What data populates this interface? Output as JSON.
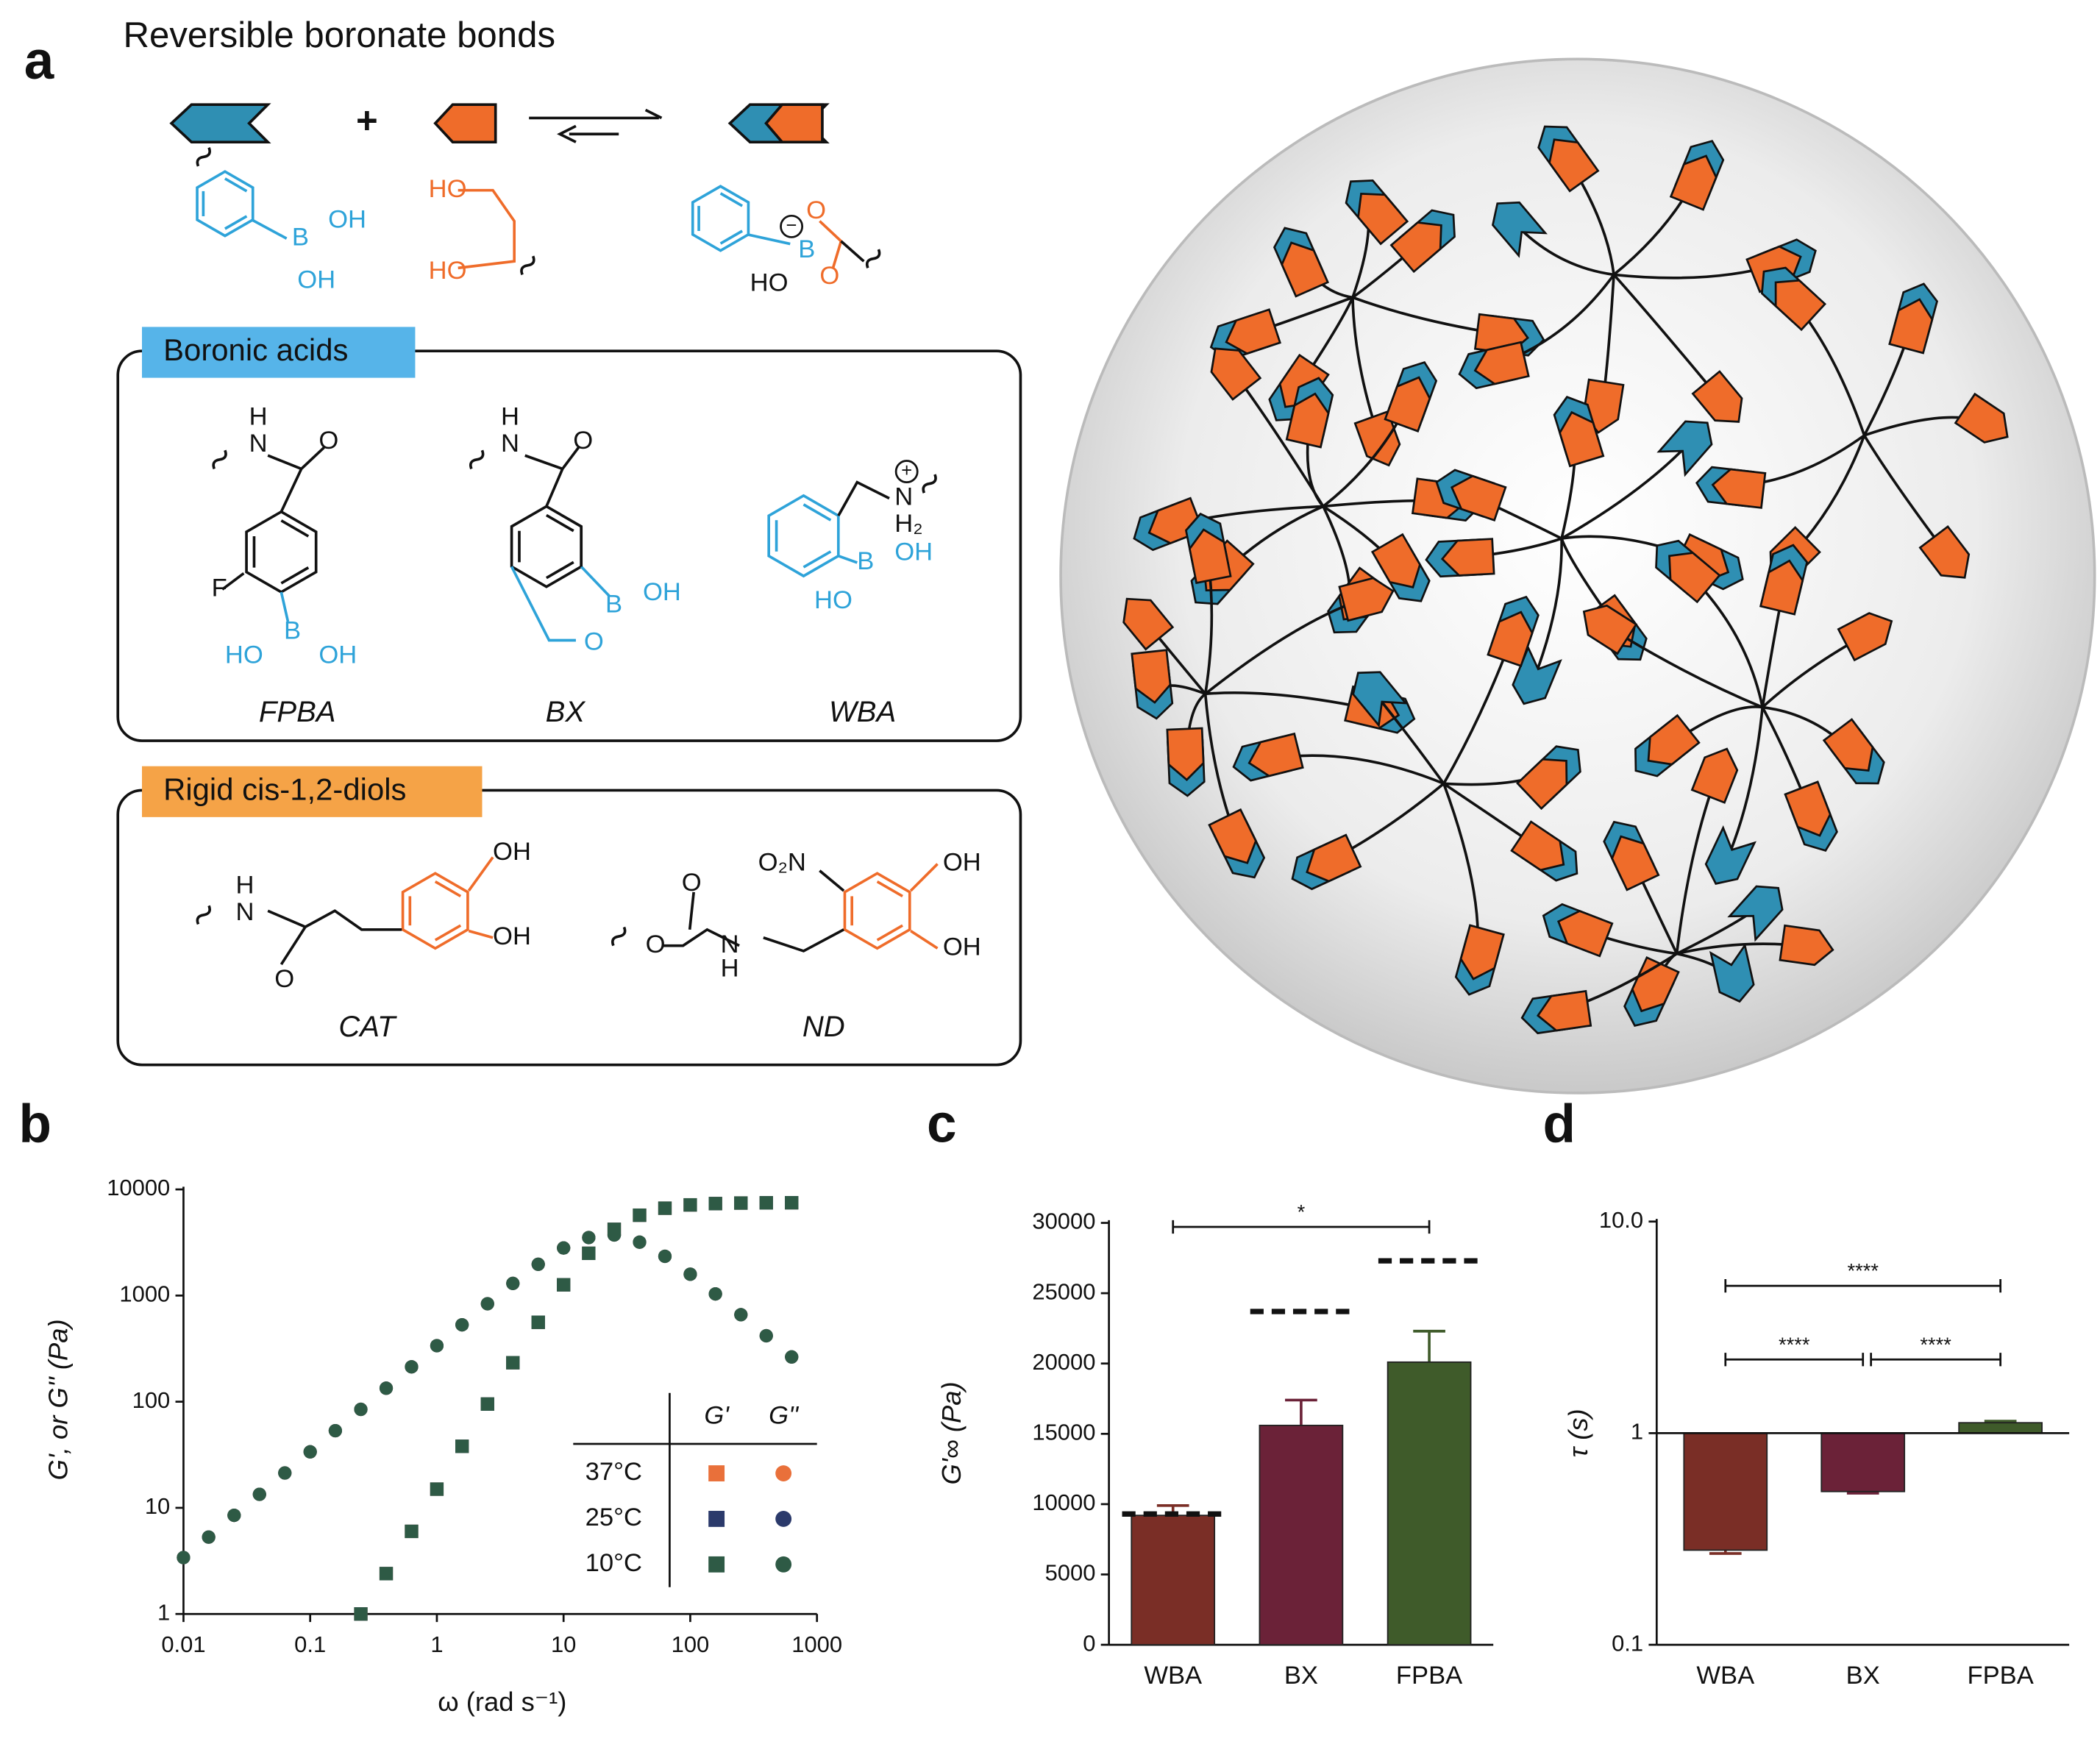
{
  "panel_labels": [
    "a",
    "b",
    "c",
    "d"
  ],
  "scheme": {
    "title": "Reversible boronate bonds",
    "plus": "+",
    "boronic_acid_atoms": [
      "B",
      "OH",
      "OH"
    ],
    "diol_atoms": [
      "HO",
      "HO"
    ],
    "ester_atoms": [
      "B",
      "O",
      "O",
      "HO",
      "−"
    ]
  },
  "boronic_acids": {
    "title": "Boronic acids",
    "compounds": [
      {
        "name": "FPBA",
        "atoms": [
          "H",
          "N",
          "O",
          "F",
          "B",
          "HO",
          "OH"
        ]
      },
      {
        "name": "BX",
        "atoms": [
          "H",
          "N",
          "O",
          "B",
          "OH",
          "O"
        ]
      },
      {
        "name": "WBA",
        "atoms": [
          "N",
          "H₂",
          "+",
          "B",
          "OH",
          "HO"
        ]
      }
    ]
  },
  "diols": {
    "title": "Rigid cis-1,2-diols",
    "compounds": [
      {
        "name": "CAT",
        "atoms": [
          "H",
          "N",
          "O",
          "OH",
          "OH"
        ]
      },
      {
        "name": "ND",
        "atoms": [
          "O₂N",
          "O",
          "O",
          "H",
          "N",
          "OH",
          "OH"
        ]
      }
    ]
  },
  "chart_data": [
    {
      "type": "scatter",
      "x_label": "ω (rad s⁻¹)",
      "y_label": "G', or G'' (Pa)",
      "xscale": "log",
      "yscale": "log",
      "xlim": [
        0.01,
        1000
      ],
      "ylim": [
        1,
        10000
      ],
      "xticks": [
        0.01,
        0.1,
        1,
        10,
        100,
        1000
      ],
      "yticks": [
        1,
        10,
        100,
        1000,
        10000
      ],
      "legend_columns": [
        "G'",
        "G''"
      ],
      "x": [
        0.01,
        0.0158,
        0.0251,
        0.0398,
        0.0631,
        0.1,
        0.158,
        0.251,
        0.398,
        0.631,
        1,
        1.58,
        2.51,
        3.98,
        6.31,
        10,
        15.8,
        25.1,
        39.8,
        63.1,
        100,
        158,
        251,
        398,
        631
      ],
      "series": [
        {
          "name": "37°C",
          "color": "#e9703a",
          "storage_values": [
            null,
            null,
            null,
            null,
            null,
            null,
            null,
            1.0,
            2.4,
            6.0,
            15,
            38,
            95,
            233,
            560,
            1263,
            2500,
            4205,
            5715,
            6655,
            7147,
            7353,
            7441,
            7477,
            7491
          ],
          "loss_values": [
            3.4,
            5.3,
            8.5,
            13.4,
            21.3,
            33.7,
            53.3,
            84.7,
            134,
            213,
            337,
            530,
            837,
            1301,
            1971,
            2807,
            3518,
            3722,
            3185,
            2342,
            1588,
            1036,
            660,
            418,
            264
          ]
        },
        {
          "name": "25°C",
          "color": "#2b3a6b",
          "storage_values": [
            null,
            null,
            null,
            null,
            null,
            null,
            null,
            1.0,
            2.4,
            6.0,
            15,
            38,
            95,
            233,
            560,
            1263,
            2500,
            4205,
            5715,
            6655,
            7147,
            7353,
            7441,
            7477,
            7491
          ],
          "loss_values": [
            3.4,
            5.3,
            8.5,
            13.4,
            21.3,
            33.7,
            53.3,
            84.7,
            134,
            213,
            337,
            530,
            837,
            1301,
            1971,
            2807,
            3518,
            3722,
            3185,
            2342,
            1588,
            1036,
            660,
            418,
            264
          ]
        },
        {
          "name": "10°C",
          "color": "#2e5a45",
          "storage_values": [
            null,
            null,
            null,
            null,
            null,
            null,
            null,
            1.0,
            2.4,
            6.0,
            15,
            38,
            95,
            233,
            560,
            1263,
            2500,
            4205,
            5715,
            6655,
            7147,
            7353,
            7441,
            7477,
            7491
          ],
          "loss_values": [
            3.4,
            5.3,
            8.5,
            13.4,
            21.3,
            33.7,
            53.3,
            84.7,
            134,
            213,
            337,
            530,
            837,
            1301,
            1971,
            2807,
            3518,
            3722,
            3185,
            2342,
            1588,
            1036,
            660,
            418,
            264
          ]
        }
      ]
    },
    {
      "type": "bar",
      "y_label": "G'∞ (Pa)",
      "categories": [
        "WBA",
        "BX",
        "FPBA"
      ],
      "values": [
        9200,
        15600,
        20100
      ],
      "errors": [
        700,
        1800,
        2200
      ],
      "reference_values": [
        9300,
        23700,
        27300
      ],
      "colors": [
        "#7a2e26",
        "#6b2238",
        "#3f5b2a"
      ],
      "ylim": [
        0,
        30000
      ],
      "yticks": [
        0,
        5000,
        10000,
        15000,
        20000,
        25000,
        30000
      ],
      "significance_labels": [
        "*"
      ]
    },
    {
      "type": "bar",
      "y_label": "τ (s)",
      "yscale": "log",
      "categories": [
        "WBA",
        "BX",
        "FPBA"
      ],
      "values": [
        0.28,
        0.53,
        1.12
      ],
      "errors": [
        0.01,
        0.01,
        0.02
      ],
      "colors": [
        "#7a2e26",
        "#6b2238",
        "#3f5b2a"
      ],
      "ylim": [
        0.1,
        10
      ],
      "yticks": [
        0.1,
        1,
        {
          "value": 10,
          "label": "10.0"
        }
      ],
      "significance_labels": [
        "****",
        "****",
        "****"
      ]
    }
  ]
}
